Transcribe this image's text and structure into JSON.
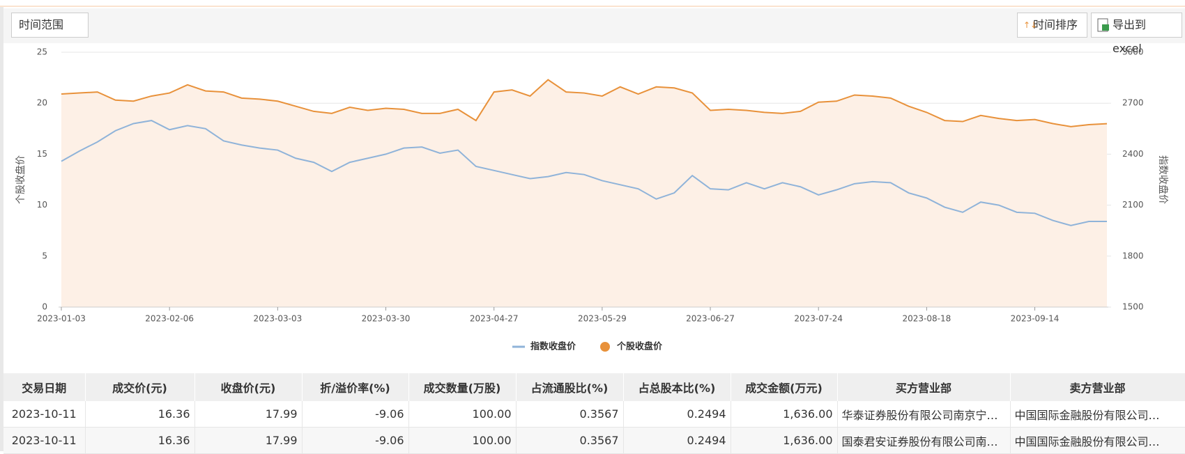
{
  "toolbar": {
    "range_button": "时间范围",
    "sort_button": "时间排序",
    "export_button": "导出到excel"
  },
  "chart_data": {
    "type": "line",
    "ylabel": "个股收盘价",
    "y2label": "指数收盘价",
    "categories": [
      "2023-01-03",
      null,
      null,
      null,
      null,
      null,
      "2023-02-06",
      null,
      null,
      null,
      null,
      null,
      "2023-03-03",
      null,
      null,
      null,
      null,
      null,
      "2023-03-30",
      null,
      null,
      null,
      null,
      null,
      "2023-04-27",
      null,
      null,
      null,
      null,
      null,
      "2023-05-29",
      null,
      null,
      null,
      null,
      null,
      "2023-06-27",
      null,
      null,
      null,
      null,
      null,
      "2023-07-24",
      null,
      null,
      null,
      null,
      null,
      "2023-08-18",
      null,
      null,
      null,
      null,
      null,
      "2023-09-14",
      null,
      null,
      null,
      null
    ],
    "series": [
      {
        "name": "指数收盘价",
        "color": "#8fb3d9",
        "axis": "y2",
        "marker": "line",
        "values": [
          2358,
          2418,
          2472,
          2538,
          2580,
          2598,
          2544,
          2568,
          2550,
          2478,
          2454,
          2436,
          2424,
          2376,
          2352,
          2298,
          2352,
          2376,
          2400,
          2436,
          2442,
          2406,
          2424,
          2328,
          2304,
          2280,
          2256,
          2268,
          2292,
          2280,
          2244,
          2220,
          2196,
          2136,
          2172,
          2274,
          2196,
          2190,
          2232,
          2196,
          2232,
          2208,
          2160,
          2190,
          2226,
          2238,
          2232,
          2172,
          2142,
          2088,
          2058,
          2118,
          2100,
          2058,
          2052,
          2010,
          1980,
          2004,
          2004
        ]
      },
      {
        "name": "个股收盘价",
        "color": "#e8913a",
        "area": true,
        "area_color": "#fdf0e6",
        "marker": "dot",
        "values": [
          20.9,
          21.0,
          21.1,
          20.3,
          20.2,
          20.7,
          21.0,
          21.8,
          21.2,
          21.1,
          20.5,
          20.4,
          20.2,
          19.7,
          19.2,
          19.0,
          19.6,
          19.3,
          19.5,
          19.4,
          19.0,
          19.0,
          19.4,
          18.3,
          21.1,
          21.3,
          20.7,
          22.3,
          21.1,
          21.0,
          20.7,
          21.6,
          20.9,
          21.6,
          21.5,
          21.0,
          19.3,
          19.4,
          19.3,
          19.1,
          19.0,
          19.2,
          20.1,
          20.2,
          20.8,
          20.7,
          20.5,
          19.7,
          19.1,
          18.3,
          18.2,
          18.8,
          18.5,
          18.3,
          18.4,
          18.0,
          17.7,
          17.9,
          17.99
        ]
      }
    ],
    "ylim": [
      0,
      25
    ],
    "yticks": [
      0,
      5,
      10,
      15,
      20,
      25
    ],
    "y2lim": [
      1500,
      3000
    ],
    "y2ticks": [
      1500,
      1800,
      2100,
      2400,
      2700,
      3000
    ],
    "grid": true,
    "legend": "bottom"
  },
  "table": {
    "headers": [
      "交易日期",
      "成交价(元)",
      "收盘价(元)",
      "折/溢价率(%)",
      "成交数量(万股)",
      "占流通股比(%)",
      "占总股本比(%)",
      "成交金额(万元)",
      "买方营业部",
      "卖方营业部"
    ],
    "rows": [
      [
        "2023-10-11",
        "16.36",
        "17.99",
        "-9.06",
        "100.00",
        "0.3567",
        "0.2494",
        "1,636.00",
        "华泰证券股份有限公司南京宁…",
        "中国国际金融股份有限公司…"
      ],
      [
        "2023-10-11",
        "16.36",
        "17.99",
        "-9.06",
        "100.00",
        "0.3567",
        "0.2494",
        "1,636.00",
        "国泰君安证券股份有限公司南…",
        "中国国际金融股份有限公司…"
      ]
    ]
  }
}
